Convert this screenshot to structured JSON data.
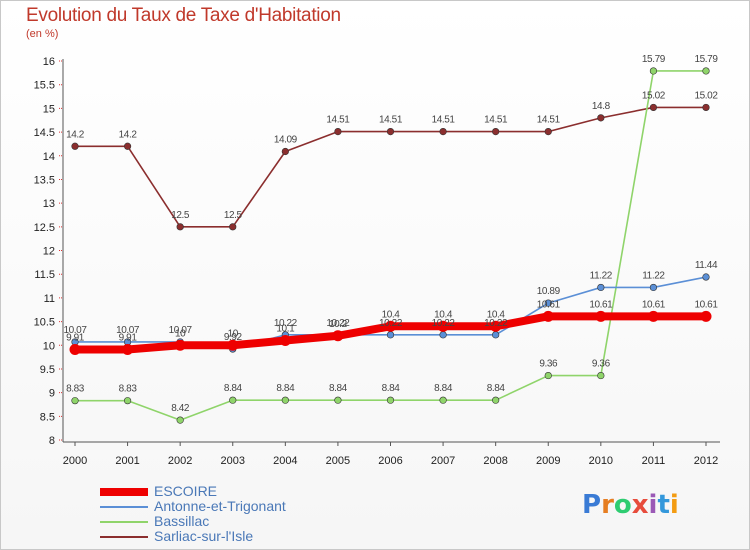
{
  "header": {
    "title": "Evolution du Taux de Taxe d'Habitation",
    "subtitle": "(en %)"
  },
  "logo": {
    "text": "Proxiti",
    "letter_colors": [
      "#3a7bd5",
      "#e67e22",
      "#2ecc71",
      "#e74c3c",
      "#9b59b6",
      "#3498db",
      "#f39c12"
    ]
  },
  "chart_data": {
    "type": "line",
    "title": "Evolution du Taux de Taxe d'Habitation",
    "subtitle": "(en %)",
    "xlabel": "",
    "ylabel": "",
    "x": [
      2000,
      2001,
      2002,
      2003,
      2004,
      2005,
      2006,
      2007,
      2008,
      2009,
      2010,
      2011,
      2012
    ],
    "x_tick_labels": [
      "2000",
      "2001",
      "2002",
      "2003",
      "2004",
      "2005",
      "2006",
      "2007",
      "2008",
      "2009",
      "2010",
      "2011",
      "2012"
    ],
    "ylim": [
      8,
      16
    ],
    "y_ticks": [
      8,
      8.5,
      9,
      9.5,
      10,
      10.5,
      11,
      11.5,
      12,
      12.5,
      13,
      13.5,
      14,
      14.5,
      15,
      15.5,
      16
    ],
    "y_tick_labels": [
      "8",
      "8.5",
      "9",
      "9.5",
      "10",
      "10.5",
      "11",
      "11.5",
      "12",
      "12.5",
      "13",
      "13.5",
      "14",
      "14.5",
      "15",
      "15.5",
      "16"
    ],
    "grid": false,
    "legend_position": "bottom-left",
    "series": [
      {
        "name": "ESCOIRE",
        "color": "#ee0000",
        "values": [
          9.91,
          9.91,
          10.0,
          10.0,
          10.1,
          10.2,
          10.4,
          10.4,
          10.4,
          10.61,
          10.61,
          10.61,
          10.61
        ],
        "labels": [
          "9.91",
          "9.91",
          "10",
          "10",
          "10.1",
          "10.2",
          "10.4",
          "10.4",
          "10.4",
          "10.61",
          "10.61",
          "10.61",
          "10.61"
        ]
      },
      {
        "name": "Antonne-et-Trigonant",
        "color": "#5b8fd6",
        "values": [
          10.07,
          10.07,
          10.07,
          9.92,
          10.22,
          10.22,
          10.22,
          10.22,
          10.22,
          10.89,
          11.22,
          11.22,
          11.44
        ],
        "labels": [
          "10.07",
          "10.07",
          "10.07",
          "9.92",
          "10.22",
          "10.22",
          "10.22",
          "10.22",
          "10.22",
          "10.89",
          "11.22",
          "11.22",
          "11.44"
        ]
      },
      {
        "name": "Bassillac",
        "color": "#8fd46a",
        "values": [
          8.83,
          8.83,
          8.42,
          8.84,
          8.84,
          8.84,
          8.84,
          8.84,
          8.84,
          9.36,
          9.36,
          15.79,
          15.79
        ],
        "labels": [
          "8.83",
          "8.83",
          "8.42",
          "8.84",
          "8.84",
          "8.84",
          "8.84",
          "8.84",
          "8.84",
          "9.36",
          "9.36",
          "15.79",
          "15.79"
        ]
      },
      {
        "name": "Sarliac-sur-l'Isle",
        "color": "#8b2e2e",
        "values": [
          14.2,
          14.2,
          12.5,
          12.5,
          14.09,
          14.51,
          14.51,
          14.51,
          14.51,
          14.51,
          14.8,
          15.02,
          15.02
        ],
        "labels": [
          "14.2",
          "14.2",
          "12.5",
          "12.5",
          "14.09",
          "14.51",
          "14.51",
          "14.51",
          "14.51",
          "14.51",
          "14.8",
          "15.02",
          "15.02"
        ]
      }
    ]
  }
}
